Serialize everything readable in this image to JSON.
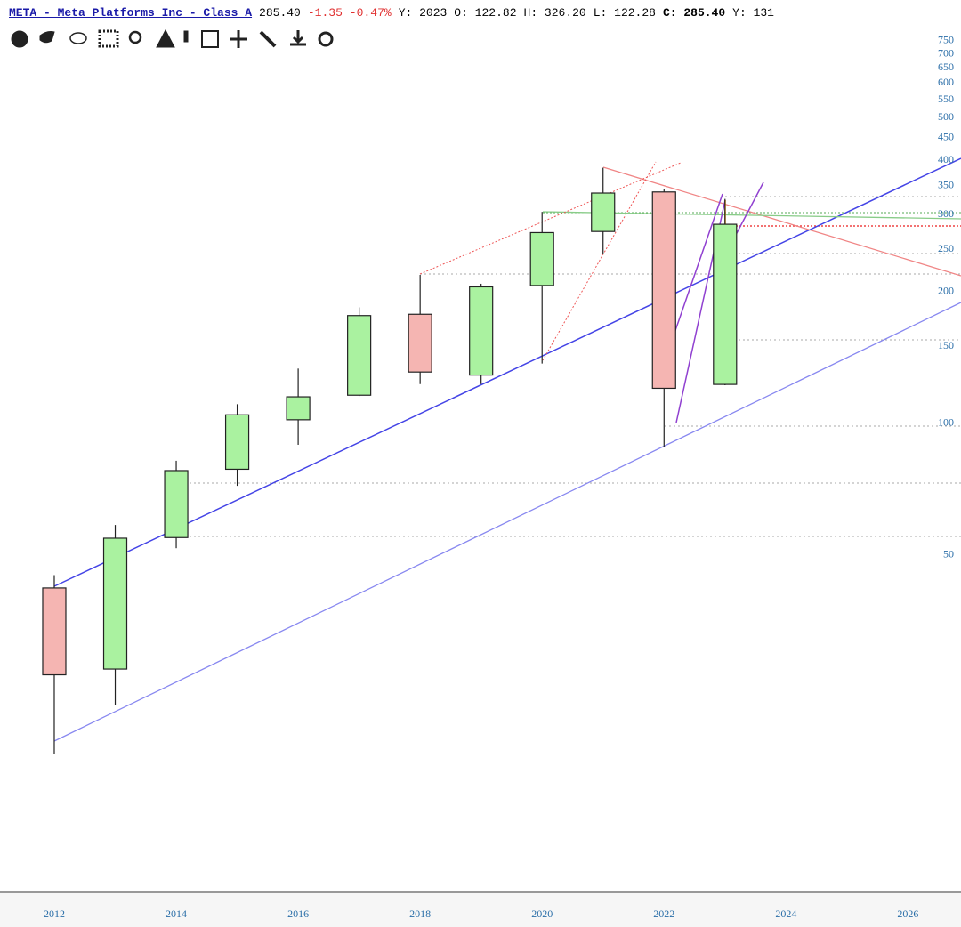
{
  "header": {
    "title": "META - Meta Platforms Inc - Class A",
    "price": "285.40",
    "change": "-1.35",
    "change_pct": "-0.47%",
    "period": "Y: 2023",
    "open": "O: 122.82",
    "high": "H: 326.20",
    "low": "L: 122.28",
    "close": "C: 285.40",
    "volume": "Y: 131"
  },
  "chart_data": {
    "type": "candlestick",
    "x": [
      2012,
      2013,
      2014,
      2015,
      2016,
      2017,
      2018,
      2019,
      2020,
      2021,
      2022,
      2023
    ],
    "open": [
      42.05,
      27.44,
      54.83,
      78.58,
      101.95,
      116.03,
      177.68,
      128.99,
      206.75,
      274.78,
      338.3,
      122.82
    ],
    "high": [
      45.0,
      58.58,
      82.17,
      110.65,
      133.5,
      184.25,
      218.62,
      208.66,
      304.67,
      384.33,
      343.09,
      326.2
    ],
    "low": [
      17.55,
      22.67,
      51.85,
      72.0,
      89.37,
      115.51,
      123.02,
      123.02,
      137.1,
      244.61,
      88.09,
      122.28
    ],
    "close": [
      26.62,
      54.65,
      78.02,
      104.66,
      115.05,
      176.46,
      131.09,
      205.25,
      273.16,
      336.35,
      120.34,
      285.4
    ],
    "up_color": "#aaf2a0",
    "down_color": "#f5b5b2",
    "log_scale": true,
    "ylim": [
      8.47,
      789
    ],
    "yticks": [
      50,
      100,
      150,
      200,
      250,
      300,
      350,
      400,
      450,
      500,
      550,
      600,
      650,
      700,
      750
    ],
    "xlim": [
      2011.11,
      2026.87
    ],
    "xticks": [
      2012,
      2014,
      2016,
      2018,
      2020,
      2022,
      2024,
      2026
    ]
  }
}
